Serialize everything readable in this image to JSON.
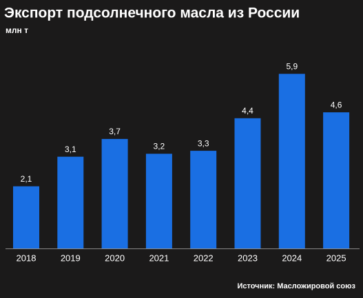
{
  "chart_data": {
    "type": "bar",
    "title": "Экспорт подсолнечного масла из России",
    "subtitle": "млн т",
    "categories": [
      "2018",
      "2019",
      "2020",
      "2021",
      "2022",
      "2023",
      "2024",
      "2025"
    ],
    "values": [
      2.1,
      3.1,
      3.7,
      3.2,
      3.3,
      4.4,
      5.9,
      4.6
    ],
    "value_labels": [
      "2,1",
      "3,1",
      "3,7",
      "3,2",
      "3,3",
      "4,4",
      "5,9",
      "4,6"
    ],
    "color": "#1a6fe3",
    "source": "Источник: Масложировой союз"
  }
}
